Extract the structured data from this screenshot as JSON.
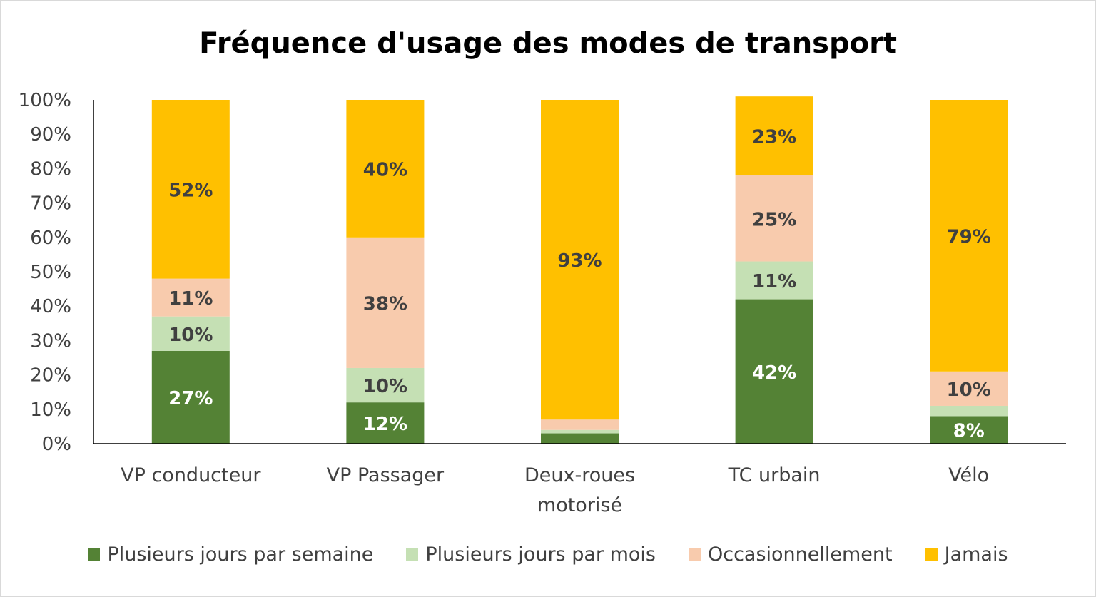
{
  "chart_data": {
    "type": "bar",
    "stacked": true,
    "title": "Fréquence d'usage des modes de transport",
    "categories": [
      "VP conducteur",
      "VP Passager",
      "Deux-roues motorisé",
      "TC urbain",
      "Vélo"
    ],
    "category_lines": [
      [
        "VP conducteur"
      ],
      [
        "VP Passager"
      ],
      [
        "Deux-roues",
        "motorisé"
      ],
      [
        "TC urbain"
      ],
      [
        "Vélo"
      ]
    ],
    "yticks": [
      "0%",
      "10%",
      "20%",
      "30%",
      "40%",
      "50%",
      "60%",
      "70%",
      "80%",
      "90%",
      "100%"
    ],
    "ylim": [
      0,
      100
    ],
    "grid": false,
    "legend_position": "bottom",
    "series": [
      {
        "name": "Plusieurs jours par semaine",
        "color": "#548235",
        "values": [
          27,
          12,
          3,
          42,
          8
        ],
        "labels": [
          "27%",
          "12%",
          "",
          "42%",
          "8%"
        ],
        "label_color": "#ffffff"
      },
      {
        "name": "Plusieurs jours par mois",
        "color": "#c5e0b4",
        "values": [
          10,
          10,
          1,
          11,
          3
        ],
        "labels": [
          "10%",
          "10%",
          "",
          "11%",
          ""
        ],
        "label_color": "#404040"
      },
      {
        "name": "Occasionnellement",
        "color": "#f8cbad",
        "values": [
          11,
          38,
          3,
          25,
          10
        ],
        "labels": [
          "11%",
          "38%",
          "",
          "25%",
          "10%"
        ],
        "label_color": "#404040"
      },
      {
        "name": "Jamais",
        "color": "#ffc000",
        "values": [
          52,
          40,
          93,
          23,
          79
        ],
        "labels": [
          "52%",
          "40%",
          "93%",
          "23%",
          "79%"
        ],
        "label_color": "#404040"
      }
    ]
  }
}
